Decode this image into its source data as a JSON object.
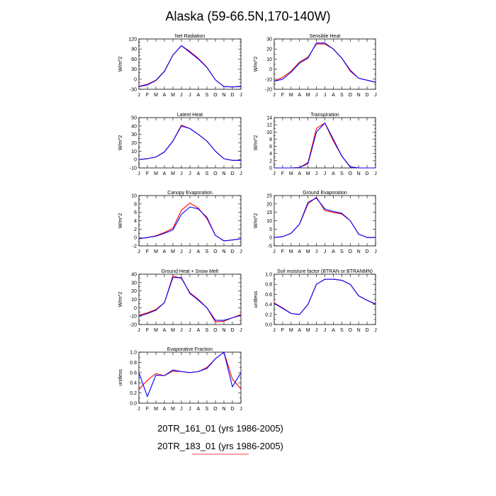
{
  "title": "Alaska (59-66.5N,170-140W)",
  "legend": [
    {
      "label": "20TR_161_01 (yrs 1986-2005)",
      "color": "#0000ff"
    },
    {
      "label": "20TR_183_01 (yrs 1986-2005)",
      "color": "#ff0000"
    }
  ],
  "chart_data": [
    {
      "type": "line",
      "title": "Net Radiation",
      "ylabel": "W/m^2",
      "ylim": [
        -30,
        120
      ],
      "yticks": [
        -30,
        -20,
        -10,
        0,
        10,
        20,
        30,
        40,
        50,
        60,
        70,
        80,
        90,
        100,
        110,
        120
      ],
      "yticklabels": [
        "-30",
        "0",
        "30",
        "60",
        "90",
        "120"
      ],
      "ylabel_step": 30,
      "categories": [
        "J",
        "F",
        "M",
        "A",
        "M",
        "J",
        "J",
        "A",
        "S",
        "O",
        "N",
        "D",
        "J"
      ],
      "series": [
        {
          "name": "20TR_183_01",
          "color": "#ff0000",
          "values": [
            -21,
            -15,
            -3,
            24,
            72,
            100,
            83,
            62,
            36,
            -2,
            -22,
            -23,
            -21
          ]
        },
        {
          "name": "20TR_161_01",
          "color": "#0000ff",
          "values": [
            -22,
            -17,
            -4,
            23,
            72,
            100,
            80,
            60,
            35,
            -2,
            -22,
            -23,
            -22
          ]
        }
      ]
    },
    {
      "type": "line",
      "title": "Sensible Heat",
      "ylabel": "W/m^2",
      "ylim": [
        -20,
        30
      ],
      "yticks": [
        -20,
        -15,
        -10,
        -5,
        0,
        5,
        10,
        15,
        20,
        25,
        30
      ],
      "yticklabels": [
        "-20",
        "-10",
        "0",
        "10",
        "20",
        "30"
      ],
      "ylabel_step": 10,
      "categories": [
        "J",
        "F",
        "M",
        "A",
        "M",
        "J",
        "J",
        "A",
        "S",
        "O",
        "N",
        "D",
        "J"
      ],
      "series": [
        {
          "name": "20TR_183_01",
          "color": "#ff0000",
          "values": [
            -12,
            -8,
            -2,
            7,
            12,
            25,
            25,
            20,
            11,
            -2,
            -9,
            -11,
            -13
          ]
        },
        {
          "name": "20TR_161_01",
          "color": "#0000ff",
          "values": [
            -12,
            -10,
            -3,
            6,
            11,
            26,
            26,
            20,
            11,
            -1,
            -9,
            -11,
            -13
          ]
        }
      ]
    },
    {
      "type": "line",
      "title": "Latent Heat",
      "ylabel": "W/m^2",
      "ylim": [
        -10,
        50
      ],
      "yticks": [
        -10,
        -5,
        0,
        5,
        10,
        15,
        20,
        25,
        30,
        35,
        40,
        45,
        50
      ],
      "yticklabels": [
        "-10",
        "0",
        "10",
        "20",
        "30",
        "40",
        "50"
      ],
      "ylabel_step": 10,
      "categories": [
        "J",
        "F",
        "M",
        "A",
        "M",
        "J",
        "J",
        "A",
        "S",
        "O",
        "N",
        "D",
        "J"
      ],
      "series": [
        {
          "name": "20TR_183_01",
          "color": "#ff0000",
          "values": [
            0,
            1,
            3,
            9,
            22,
            41,
            37,
            30,
            22,
            10,
            1,
            -1,
            -1
          ]
        },
        {
          "name": "20TR_161_01",
          "color": "#0000ff",
          "values": [
            0,
            1,
            3,
            9,
            22,
            40,
            37,
            30,
            22,
            10,
            1,
            -1,
            -1
          ]
        }
      ]
    },
    {
      "type": "line",
      "title": "Transpiration",
      "ylabel": "W/m^2",
      "ylim": [
        0,
        14
      ],
      "yticks": [
        0,
        1,
        2,
        3,
        4,
        5,
        6,
        7,
        8,
        9,
        10,
        11,
        12,
        13,
        14
      ],
      "yticklabels": [
        "0",
        "2",
        "4",
        "6",
        "8",
        "10",
        "12",
        "14"
      ],
      "ylabel_step": 2,
      "categories": [
        "J",
        "F",
        "M",
        "A",
        "M",
        "J",
        "J",
        "A",
        "S",
        "O",
        "N",
        "D",
        "J"
      ],
      "series": [
        {
          "name": "20TR_183_01",
          "color": "#ff0000",
          "values": [
            0,
            0,
            0,
            0.1,
            1.5,
            11,
            12.5,
            7.5,
            3.3,
            0.3,
            0,
            0,
            0
          ]
        },
        {
          "name": "20TR_161_01",
          "color": "#0000ff",
          "values": [
            0,
            0,
            0,
            0.1,
            1.2,
            10,
            12.5,
            8,
            3.3,
            0.3,
            0,
            0,
            0
          ]
        }
      ]
    },
    {
      "type": "line",
      "title": "Canopy Evaporation",
      "ylabel": "W/m^2",
      "ylim": [
        -2,
        10
      ],
      "yticks": [
        -2,
        -1,
        0,
        1,
        2,
        3,
        4,
        5,
        6,
        7,
        8,
        9,
        10
      ],
      "yticklabels": [
        "-2",
        "0",
        "2",
        "4",
        "6",
        "8",
        "10"
      ],
      "ylabel_step": 2,
      "categories": [
        "J",
        "F",
        "M",
        "A",
        "M",
        "J",
        "J",
        "A",
        "S",
        "O",
        "N",
        "D",
        "J"
      ],
      "series": [
        {
          "name": "20TR_183_01",
          "color": "#ff0000",
          "values": [
            -0.3,
            0,
            0.4,
            1.2,
            2.2,
            6.5,
            8.2,
            7,
            4.5,
            0.5,
            -0.8,
            -0.6,
            -0.3
          ]
        },
        {
          "name": "20TR_161_01",
          "color": "#0000ff",
          "values": [
            -0.3,
            0,
            0.3,
            1,
            1.8,
            5.5,
            7.3,
            6.8,
            4.8,
            0.5,
            -0.8,
            -0.6,
            -0.3
          ]
        }
      ]
    },
    {
      "type": "line",
      "title": "Ground Evaporation",
      "ylabel": "W/m^2",
      "ylim": [
        -5,
        25
      ],
      "yticks": [
        -5,
        0,
        5,
        10,
        15,
        20,
        25
      ],
      "yticklabels": [
        "-5",
        "0",
        "5",
        "10",
        "15",
        "20",
        "25"
      ],
      "ylabel_step": 5,
      "categories": [
        "J",
        "F",
        "M",
        "A",
        "M",
        "J",
        "J",
        "A",
        "S",
        "O",
        "N",
        "D",
        "J"
      ],
      "series": [
        {
          "name": "20TR_183_01",
          "color": "#ff0000",
          "values": [
            0,
            0.5,
            2.5,
            8,
            20,
            24,
            16,
            15,
            14,
            10,
            2,
            0,
            0
          ]
        },
        {
          "name": "20TR_161_01",
          "color": "#0000ff",
          "values": [
            0,
            0.5,
            2.5,
            8,
            21,
            23.5,
            17,
            15.5,
            14.5,
            10,
            2,
            0,
            0
          ]
        }
      ]
    },
    {
      "type": "line",
      "title": "Ground Heat + Snow Melt",
      "ylabel": "W/m^2",
      "ylim": [
        -20,
        40
      ],
      "yticks": [
        -20,
        -15,
        -10,
        -5,
        0,
        5,
        10,
        15,
        20,
        25,
        30,
        35,
        40
      ],
      "yticklabels": [
        "-20",
        "-10",
        "0",
        "10",
        "20",
        "30",
        "40"
      ],
      "ylabel_step": 10,
      "categories": [
        "J",
        "F",
        "M",
        "A",
        "M",
        "J",
        "J",
        "A",
        "S",
        "O",
        "N",
        "D",
        "J"
      ],
      "series": [
        {
          "name": "20TR_183_01",
          "color": "#ff0000",
          "values": [
            -9,
            -6,
            -2,
            6,
            38,
            35,
            18,
            10,
            0,
            -17,
            -16,
            -12,
            -8
          ]
        },
        {
          "name": "20TR_161_01",
          "color": "#0000ff",
          "values": [
            -10,
            -7,
            -3,
            6,
            36,
            36,
            17,
            9,
            0,
            -15,
            -15,
            -12,
            -9
          ]
        }
      ]
    },
    {
      "type": "line",
      "title": "Soil moisture factor (BTRAN or BTRANMN)",
      "ylabel": "unitless",
      "ylim": [
        0,
        1
      ],
      "yticks": [
        0,
        0.1,
        0.2,
        0.3,
        0.4,
        0.5,
        0.6,
        0.7,
        0.8,
        0.9,
        1.0
      ],
      "yticklabels": [
        "0.0",
        "0.2",
        "0.4",
        "0.6",
        "0.8",
        "1.0"
      ],
      "ylabel_step": 0.2,
      "categories": [
        "J",
        "F",
        "M",
        "A",
        "M",
        "J",
        "J",
        "A",
        "S",
        "O",
        "N",
        "D",
        "J"
      ],
      "series": [
        {
          "name": "20TR_183_01",
          "color": "#ff0000",
          "values": [
            0.43,
            0.33,
            0.22,
            0.2,
            0.4,
            0.8,
            0.9,
            0.9,
            0.88,
            0.8,
            0.57,
            0.48,
            0.4
          ]
        },
        {
          "name": "20TR_161_01",
          "color": "#0000ff",
          "values": [
            0.42,
            0.32,
            0.22,
            0.2,
            0.4,
            0.8,
            0.9,
            0.9,
            0.88,
            0.8,
            0.57,
            0.48,
            0.41
          ]
        }
      ]
    },
    {
      "type": "line",
      "title": "Evaporative Fraction",
      "ylabel": "unitless",
      "ylim": [
        0,
        1
      ],
      "yticks": [
        0,
        0.1,
        0.2,
        0.3,
        0.4,
        0.5,
        0.6,
        0.7,
        0.8,
        0.9,
        1.0
      ],
      "yticklabels": [
        "0.0",
        "0.2",
        "0.4",
        "0.6",
        "0.8",
        "1.0"
      ],
      "ylabel_step": 0.2,
      "categories": [
        "J",
        "F",
        "M",
        "A",
        "M",
        "J",
        "J",
        "A",
        "S",
        "O",
        "N",
        "D",
        "J"
      ],
      "series": [
        {
          "name": "20TR_183_01",
          "color": "#ff0000",
          "values": [
            0.27,
            0.45,
            0.58,
            0.54,
            0.63,
            0.62,
            0.6,
            0.62,
            0.7,
            0.87,
            1.0,
            0.47,
            0.28
          ]
        },
        {
          "name": "20TR_161_01",
          "color": "#0000ff",
          "values": [
            0.6,
            0.13,
            0.55,
            0.54,
            0.65,
            0.62,
            0.6,
            0.62,
            0.68,
            0.87,
            1.0,
            0.32,
            0.6
          ]
        }
      ]
    }
  ]
}
